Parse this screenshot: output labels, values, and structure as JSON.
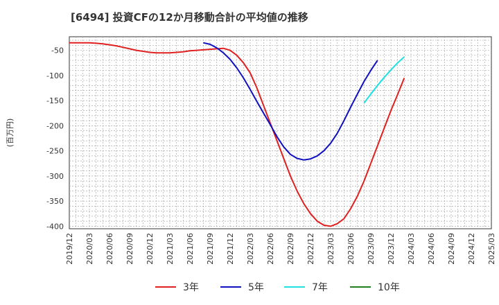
{
  "chart_data": {
    "type": "line",
    "title": "[6494]  投資CFの12か月移動合計の平均値の推移",
    "ylabel": "(百万円)",
    "xlabel": "",
    "ylim": [
      -405,
      -23
    ],
    "yticks": [
      -50,
      -100,
      -150,
      -200,
      -250,
      -300,
      -350,
      -400
    ],
    "x_categories": [
      "2019/12",
      "2020/03",
      "2020/06",
      "2020/09",
      "2020/12",
      "2021/03",
      "2021/06",
      "2021/09",
      "2021/12",
      "2022/03",
      "2022/06",
      "2022/09",
      "2022/12",
      "2023/03",
      "2023/06",
      "2023/09",
      "2023/12",
      "2024/03",
      "2024/06",
      "2024/09",
      "2024/12",
      "2025/03"
    ],
    "grid": true,
    "legend_position": "bottom",
    "series": [
      {
        "name": "3年",
        "color": "#e02020",
        "x_start": "2019/12",
        "values": [
          -35,
          -35,
          -35,
          -35,
          -36,
          -37,
          -39,
          -41,
          -44,
          -47,
          -50,
          -52,
          -54,
          -55,
          -55,
          -55,
          -54,
          -53,
          -51,
          -50,
          -49,
          -48,
          -47,
          -46,
          -50,
          -60,
          -75,
          -95,
          -125,
          -160,
          -195,
          -230,
          -265,
          -300,
          -330,
          -355,
          -375,
          -390,
          -398,
          -400,
          -395,
          -385,
          -365,
          -340,
          -310,
          -275,
          -240,
          -205,
          -170,
          -138,
          -105
        ]
      },
      {
        "name": "5年",
        "color": "#1010c0",
        "x_start": "2021/08",
        "values": [
          -35,
          -38,
          -45,
          -55,
          -68,
          -85,
          -105,
          -128,
          -152,
          -175,
          -198,
          -222,
          -242,
          -257,
          -265,
          -268,
          -266,
          -260,
          -250,
          -235,
          -215,
          -190,
          -163,
          -137,
          -112,
          -90,
          -70
        ]
      },
      {
        "name": "7年",
        "color": "#20e0e0",
        "x_start": "2023/08",
        "values": [
          -155,
          -137,
          -120,
          -104,
          -89,
          -75,
          -63
        ]
      },
      {
        "name": "10年",
        "color": "#208020",
        "x_start": "2024/03",
        "values": []
      }
    ]
  }
}
